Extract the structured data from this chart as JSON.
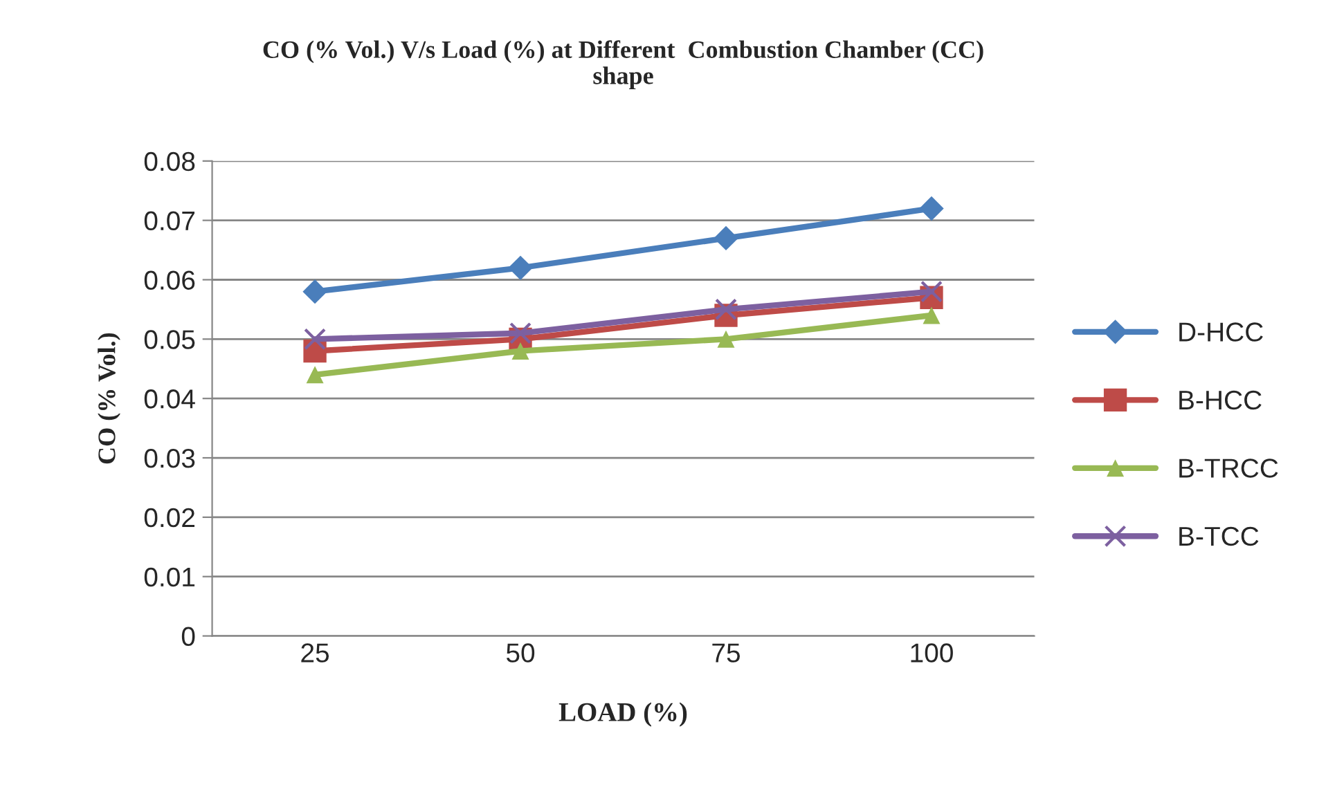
{
  "chart_data": {
    "type": "line",
    "title": "CO (% Vol.) V/s Load (%) at Different  Combustion Chamber (CC)\nshape",
    "xlabel": "LOAD (%)",
    "ylabel": "CO (% Vol.)",
    "categories": [
      "25",
      "50",
      "75",
      "100"
    ],
    "series": [
      {
        "name": "D-HCC",
        "color": "#4a7ebb",
        "marker": "diamond",
        "values": [
          0.058,
          0.062,
          0.067,
          0.072
        ]
      },
      {
        "name": "B-HCC",
        "color": "#be4b48",
        "marker": "square",
        "values": [
          0.048,
          0.05,
          0.054,
          0.057
        ]
      },
      {
        "name": "B-TRCC",
        "color": "#98b954",
        "marker": "triangle",
        "values": [
          0.044,
          0.048,
          0.05,
          0.054
        ]
      },
      {
        "name": "B-TCC",
        "color": "#7d60a0",
        "marker": "cross",
        "values": [
          0.05,
          0.051,
          0.055,
          0.058
        ]
      }
    ],
    "ylim": [
      0,
      0.08
    ],
    "yticks": [
      {
        "value": 0,
        "label": "0"
      },
      {
        "value": 0.01,
        "label": "0.01"
      },
      {
        "value": 0.02,
        "label": "0.02"
      },
      {
        "value": 0.03,
        "label": "0.03"
      },
      {
        "value": 0.04,
        "label": "0.04"
      },
      {
        "value": 0.05,
        "label": "0.05"
      },
      {
        "value": 0.06,
        "label": "0.06"
      },
      {
        "value": 0.07,
        "label": "0.07"
      },
      {
        "value": 0.08,
        "label": "0.08"
      }
    ],
    "grid": "y",
    "legend": "right",
    "line_style": "solid"
  }
}
